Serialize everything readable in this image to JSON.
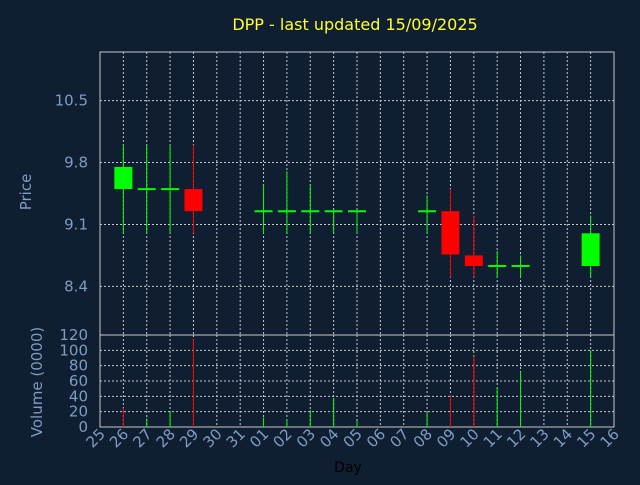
{
  "title": "DPP - last updated 15/09/2025",
  "colors": {
    "background": "#0f1e30",
    "grid": "#c8c8c8",
    "title": "#ffff33",
    "label": "#7f9cc4",
    "axis_text": "#7f9cc4",
    "up": "#00ff00",
    "down": "#ff0000",
    "doji": "#00ff00",
    "xlabel": "#000000"
  },
  "chart_data": [
    {
      "type": "candlestick",
      "ylabel": "Price",
      "ylim": [
        7.85,
        11.05
      ],
      "yticks": [
        8.4,
        9.1,
        9.8,
        10.5
      ],
      "ytick_labels": [
        "8.4",
        "9.1",
        "9.8",
        "10.5"
      ],
      "grid": true,
      "x": [
        "25",
        "26",
        "27",
        "28",
        "29",
        "30",
        "31",
        "01",
        "02",
        "03",
        "04",
        "05",
        "06",
        "07",
        "08",
        "09",
        "10",
        "11",
        "12",
        "13",
        "14",
        "15",
        "16"
      ],
      "candles": [
        {
          "day": "26",
          "open": 9.5,
          "close": 9.75,
          "high": 10.0,
          "low": 9.0
        },
        {
          "day": "27",
          "open": 9.5,
          "close": 9.5,
          "high": 10.0,
          "low": 9.0
        },
        {
          "day": "28",
          "open": 9.5,
          "close": 9.5,
          "high": 10.0,
          "low": 9.0
        },
        {
          "day": "29",
          "open": 9.5,
          "close": 9.25,
          "high": 10.0,
          "low": 9.0
        },
        {
          "day": "01",
          "open": 9.25,
          "close": 9.25,
          "high": 9.55,
          "low": 9.0
        },
        {
          "day": "02",
          "open": 9.25,
          "close": 9.25,
          "high": 9.7,
          "low": 9.0
        },
        {
          "day": "03",
          "open": 9.25,
          "close": 9.25,
          "high": 9.55,
          "low": 9.0
        },
        {
          "day": "04",
          "open": 9.25,
          "close": 9.25,
          "high": 9.25,
          "low": 9.0
        },
        {
          "day": "05",
          "open": 9.25,
          "close": 9.25,
          "high": 9.25,
          "low": 9.0
        },
        {
          "day": "08",
          "open": 9.25,
          "close": 9.25,
          "high": 9.43,
          "low": 9.0
        },
        {
          "day": "09",
          "open": 9.25,
          "close": 8.76,
          "high": 9.5,
          "low": 8.5
        },
        {
          "day": "10",
          "open": 8.75,
          "close": 8.63,
          "high": 9.2,
          "low": 8.5
        },
        {
          "day": "11",
          "open": 8.63,
          "close": 8.63,
          "high": 8.8,
          "low": 8.5
        },
        {
          "day": "12",
          "open": 8.63,
          "close": 8.63,
          "high": 8.75,
          "low": 8.5
        },
        {
          "day": "15",
          "open": 8.63,
          "close": 9.0,
          "high": 9.2,
          "low": 8.5
        }
      ]
    },
    {
      "type": "bar",
      "ylabel": "Volume (0000)",
      "xlabel": "Day",
      "ylim": [
        0,
        120
      ],
      "yticks": [
        0,
        20,
        40,
        60,
        80,
        100,
        120
      ],
      "ytick_labels": [
        "0",
        "20",
        "40",
        "60",
        "80",
        "100",
        "120"
      ],
      "grid": true,
      "bars": [
        {
          "day": "26",
          "value": 25,
          "color": "down"
        },
        {
          "day": "27",
          "value": 11,
          "color": "up"
        },
        {
          "day": "28",
          "value": 21,
          "color": "up"
        },
        {
          "day": "29",
          "value": 115,
          "color": "down"
        },
        {
          "day": "01",
          "value": 12,
          "color": "up"
        },
        {
          "day": "02",
          "value": 10,
          "color": "up"
        },
        {
          "day": "03",
          "value": 22,
          "color": "up"
        },
        {
          "day": "04",
          "value": 38,
          "color": "up"
        },
        {
          "day": "05",
          "value": 8,
          "color": "up"
        },
        {
          "day": "08",
          "value": 20,
          "color": "up"
        },
        {
          "day": "09",
          "value": 42,
          "color": "down"
        },
        {
          "day": "10",
          "value": 92,
          "color": "down"
        },
        {
          "day": "11",
          "value": 52,
          "color": "up"
        },
        {
          "day": "12",
          "value": 72,
          "color": "up"
        },
        {
          "day": "15",
          "value": 100,
          "color": "up"
        }
      ]
    }
  ]
}
